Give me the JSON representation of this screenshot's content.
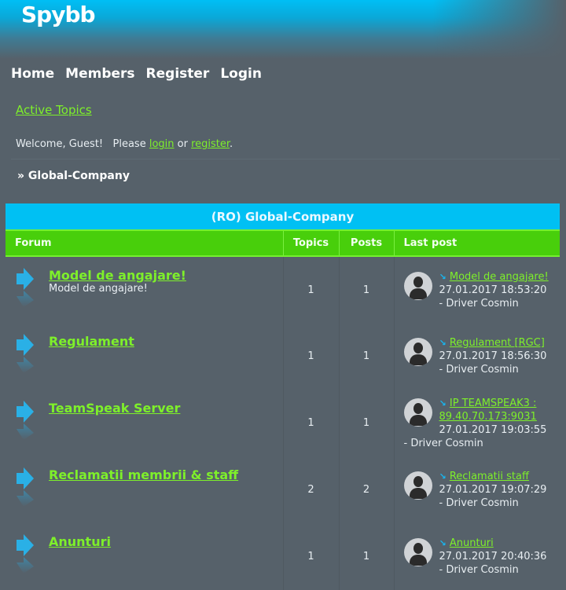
{
  "logo": "Spybb",
  "nav": [
    "Home",
    "Members",
    "Register",
    "Login"
  ],
  "active_topics": "Active Topics",
  "welcome": {
    "text1": "Welcome, Guest!   Please ",
    "login": "login",
    "or": " or ",
    "register": "register",
    "end": "."
  },
  "breadcrumb": "» Global-Company",
  "category": "(RO) Global-Company",
  "columns": [
    "Forum",
    "Topics",
    "Posts",
    "Last post"
  ],
  "forums": [
    {
      "name": "Model de angajare!",
      "desc": "Model de angajare!",
      "topics": "1",
      "posts": "1",
      "last": "Model de angajare!",
      "date": "27.01.2017 18:53:20",
      "by": "- Driver Cosmin"
    },
    {
      "name": "Regulament",
      "desc": "",
      "topics": "1",
      "posts": "1",
      "last": "Regulament [RGC]",
      "date": "27.01.2017 18:56:30",
      "by": "- Driver Cosmin"
    },
    {
      "name": "TeamSpeak Server",
      "desc": "",
      "topics": "1",
      "posts": "1",
      "last": "IP TEAMSPEAK3 : 89.40.70.173:9031",
      "date": "27.01.2017 19:03:55",
      "by": "- Driver Cosmin"
    },
    {
      "name": "Reclamatii membrii & staff",
      "desc": "",
      "topics": "2",
      "posts": "2",
      "last": "Reclamatii staff",
      "date": "27.01.2017 19:07:29",
      "by": "- Driver Cosmin"
    },
    {
      "name": "Anunturi",
      "desc": "",
      "topics": "1",
      "posts": "1",
      "last": "Anunturi",
      "date": "27.01.2017 20:40:36",
      "by": "- Driver Cosmin"
    }
  ],
  "colors": {
    "accent": "#7ef02a",
    "title_bar": "#00c0f3",
    "header_bar": "#48cf0b",
    "background": "#56616a"
  }
}
